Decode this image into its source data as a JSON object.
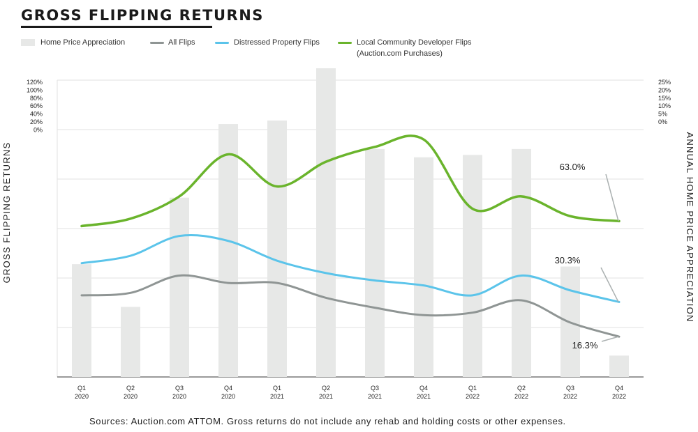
{
  "title": "GROSS FLIPPING RETURNS",
  "footer": "Sources: Auction.com ATTOM. Gross returns do not include any rehab and holding costs or other expenses.",
  "colors": {
    "bars": "#e7e8e7",
    "all_flips": "#8f9594",
    "distressed": "#5bc4ea",
    "local_dev": "#6ab42c",
    "grid": "#e2e2e2",
    "axis": "#333333"
  },
  "legend": [
    {
      "label": "Home Price Appreciation",
      "sub": "",
      "kind": "box",
      "color": "#e7e8e7"
    },
    {
      "label": "All Flips",
      "sub": "",
      "kind": "line",
      "color": "#8f9594"
    },
    {
      "label": "Distressed Property Flips",
      "sub": "",
      "kind": "line",
      "color": "#5bc4ea"
    },
    {
      "label": "Local Community Developer Flips",
      "sub": "(Auction.com Purchases)",
      "kind": "line",
      "color": "#6ab42c"
    }
  ],
  "chart_data": {
    "type": "bar+line",
    "title": "GROSS FLIPPING RETURNS",
    "ylabel": "GROSS FLIPPING RETURNS",
    "y2label": "ANNUAL HOME PRICE APPRECIATION",
    "left_ticks": [
      "120%",
      "100%",
      "80%",
      "60%",
      "40%",
      "20%",
      "0%"
    ],
    "right_ticks": [
      "25%",
      "20%",
      "15%",
      "10%",
      "5%",
      "0%"
    ],
    "categories": [
      {
        "q": "Q1",
        "y": "2020"
      },
      {
        "q": "Q2",
        "y": "2020"
      },
      {
        "q": "Q3",
        "y": "2020"
      },
      {
        "q": "Q4",
        "y": "2020"
      },
      {
        "q": "Q1",
        "y": "2021"
      },
      {
        "q": "Q2",
        "y": "2021"
      },
      {
        "q": "Q3",
        "y": "2021"
      },
      {
        "q": "Q4",
        "y": "2021"
      },
      {
        "q": "Q1",
        "y": "2022"
      },
      {
        "q": "Q2",
        "y": "2022"
      },
      {
        "q": "Q3",
        "y": "2022"
      },
      {
        "q": "Q4",
        "y": "2022"
      }
    ],
    "bars": {
      "name": "Home Price Appreciation",
      "values": [
        9.5,
        5.9,
        15.1,
        21.3,
        21.6,
        26.0,
        19.2,
        18.5,
        18.7,
        19.2,
        9.3,
        1.8
      ]
    },
    "series": [
      {
        "name": "All Flips",
        "values": [
          33,
          34,
          41,
          38,
          38,
          32,
          28,
          25,
          26,
          31,
          22,
          16.3
        ]
      },
      {
        "name": "Distressed Property Flips",
        "values": [
          46,
          49,
          57,
          55,
          47,
          42,
          39,
          37,
          33,
          41,
          35,
          30.3
        ]
      },
      {
        "name": "Local Community Developer Flips",
        "values": [
          61,
          64,
          73,
          90,
          77,
          87,
          93,
          96,
          68,
          73,
          65,
          63.0
        ]
      }
    ],
    "annotations": [
      {
        "text": "63.0%",
        "series": 2
      },
      {
        "text": "30.3%",
        "series": 1
      },
      {
        "text": "16.3%",
        "series": 0
      }
    ],
    "ylim": [
      0,
      120
    ],
    "y2lim": [
      0,
      25
    ],
    "grid": true,
    "legend_position": "top-left"
  }
}
